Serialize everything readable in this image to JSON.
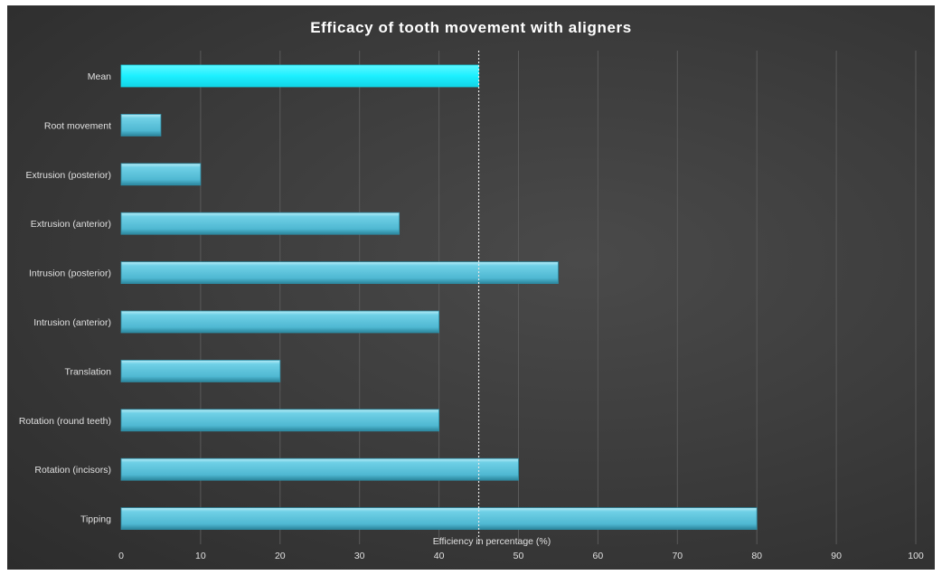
{
  "chart_data": {
    "type": "bar",
    "orientation": "horizontal",
    "title": "Efficacy of tooth movement with aligners",
    "xlabel": "Efficiency in percentage (%)",
    "ylabel": "",
    "xlim": [
      0,
      100
    ],
    "xticks": [
      "0",
      "10",
      "20",
      "30",
      "40",
      "50",
      "60",
      "70",
      "80",
      "90",
      "100"
    ],
    "grid": true,
    "legend": "none",
    "reference_line": {
      "value": 45,
      "style": "dotted",
      "color": "#e6e6e6"
    },
    "categories": [
      "Mean",
      "Root movement",
      "Extrusion (posterior)",
      "Extrusion (anterior)",
      "Intrusion (posterior)",
      "Intrusion (anterior)",
      "Translation",
      "Rotation (round teeth)",
      "Rotation (incisors)",
      "Tipping"
    ],
    "values": [
      45,
      5,
      10,
      35,
      55,
      40,
      20,
      40,
      50,
      80
    ],
    "colors": {
      "bar": "#5bc4dc",
      "bar_highlight": "#9fe4f2",
      "bar_dark": "#2f8ea6",
      "mean_bar": "#1ff0ff",
      "text": "#e0e0e0",
      "title": "#ffffff",
      "grid": "#5a5a5a"
    }
  }
}
